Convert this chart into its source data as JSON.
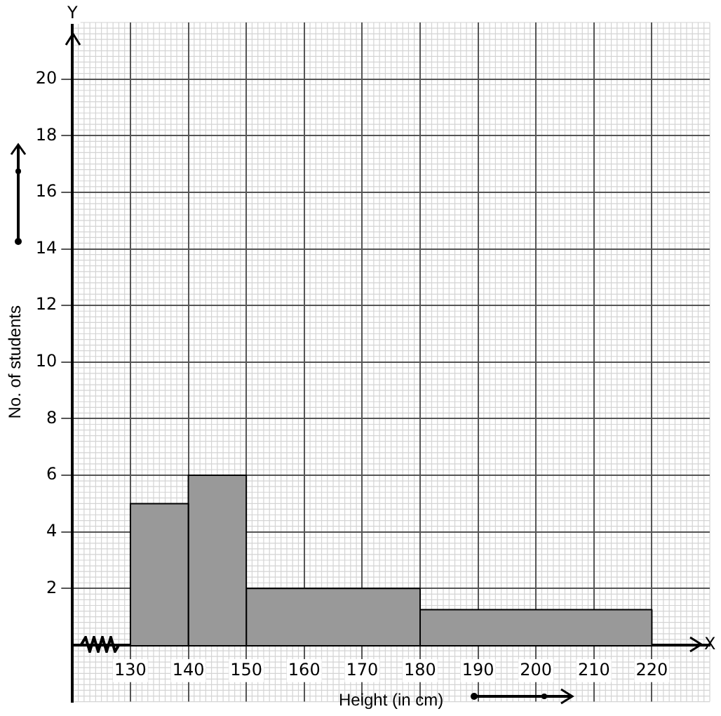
{
  "chart_data": {
    "type": "histogram",
    "xlabel": "Height (in cm)",
    "ylabel": "No. of students",
    "bins": [
      130,
      140,
      150,
      180,
      220
    ],
    "values": [
      5,
      6,
      2,
      1.25
    ],
    "color": "#999999",
    "xlim": [
      120,
      230
    ],
    "xticks": [
      130,
      140,
      150,
      160,
      170,
      180,
      190,
      200,
      210,
      220
    ],
    "ylim": [
      -2,
      22
    ],
    "yticks": [
      2,
      4,
      6,
      8,
      10,
      12,
      14,
      16,
      18,
      20
    ],
    "grid": true,
    "annotations": [
      "X",
      "Y"
    ]
  }
}
